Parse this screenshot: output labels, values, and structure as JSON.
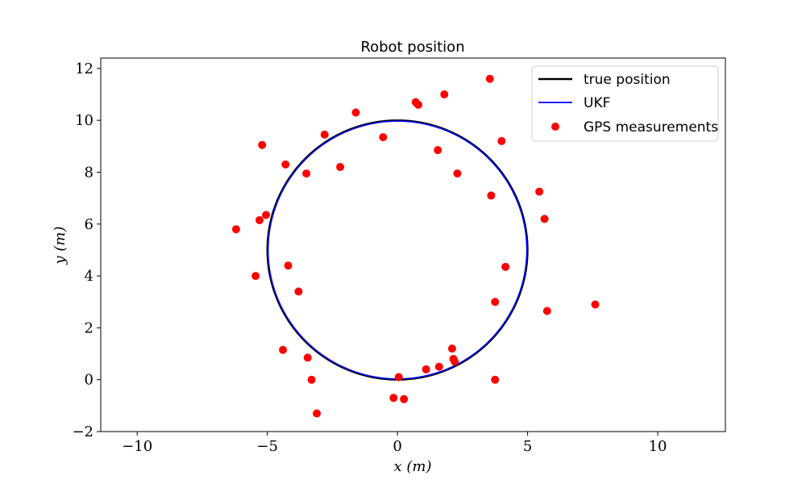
{
  "chart_data": {
    "type": "scatter",
    "title": "Robot position",
    "xlabel": "x (m)",
    "ylabel": "y (m)",
    "xlim": [
      -11.4,
      12.6
    ],
    "ylim": [
      -2.0,
      12.4
    ],
    "xticks": [
      -10,
      -5,
      0,
      5,
      10
    ],
    "yticks": [
      -2,
      0,
      2,
      4,
      6,
      8,
      10,
      12
    ],
    "x_tick_labels": [
      "−10",
      "−5",
      "0",
      "5",
      "10"
    ],
    "y_tick_labels": [
      "−2",
      "0",
      "2",
      "4",
      "6",
      "8",
      "10",
      "12"
    ],
    "grid": false,
    "legend_position": "top-right",
    "series": [
      {
        "name": "true position",
        "kind": "line",
        "color": "#000000",
        "shape": "circle",
        "center": [
          0,
          5
        ],
        "radius": 5
      },
      {
        "name": "UKF",
        "kind": "line",
        "color": "#0000ff",
        "shape": "circle",
        "center": [
          0,
          5
        ],
        "radius": 4.97
      },
      {
        "name": "GPS measurements",
        "kind": "scatter",
        "color": "#ff0000",
        "points": [
          [
            3.55,
            11.6
          ],
          [
            0.7,
            10.7
          ],
          [
            0.8,
            10.6
          ],
          [
            1.8,
            11.0
          ],
          [
            -1.6,
            10.3
          ],
          [
            -2.8,
            9.45
          ],
          [
            -0.55,
            9.35
          ],
          [
            -5.2,
            9.05
          ],
          [
            4.0,
            9.2
          ],
          [
            1.55,
            8.85
          ],
          [
            -4.3,
            8.3
          ],
          [
            -3.5,
            7.95
          ],
          [
            -2.2,
            8.2
          ],
          [
            2.3,
            7.95
          ],
          [
            3.6,
            7.1
          ],
          [
            5.45,
            7.25
          ],
          [
            5.65,
            6.2
          ],
          [
            -5.05,
            6.35
          ],
          [
            -5.3,
            6.15
          ],
          [
            -6.2,
            5.8
          ],
          [
            4.15,
            4.35
          ],
          [
            -4.2,
            4.4
          ],
          [
            -5.45,
            4.0
          ],
          [
            -3.8,
            3.4
          ],
          [
            3.75,
            3.0
          ],
          [
            5.75,
            2.65
          ],
          [
            7.6,
            2.9
          ],
          [
            -4.4,
            1.15
          ],
          [
            2.1,
            1.2
          ],
          [
            2.15,
            0.8
          ],
          [
            2.2,
            0.7
          ],
          [
            -3.45,
            0.85
          ],
          [
            1.6,
            0.5
          ],
          [
            1.1,
            0.4
          ],
          [
            0.05,
            0.1
          ],
          [
            -3.3,
            0.0
          ],
          [
            3.75,
            0.0
          ],
          [
            -0.15,
            -0.7
          ],
          [
            0.25,
            -0.75
          ],
          [
            -3.1,
            -1.3
          ]
        ]
      }
    ]
  }
}
